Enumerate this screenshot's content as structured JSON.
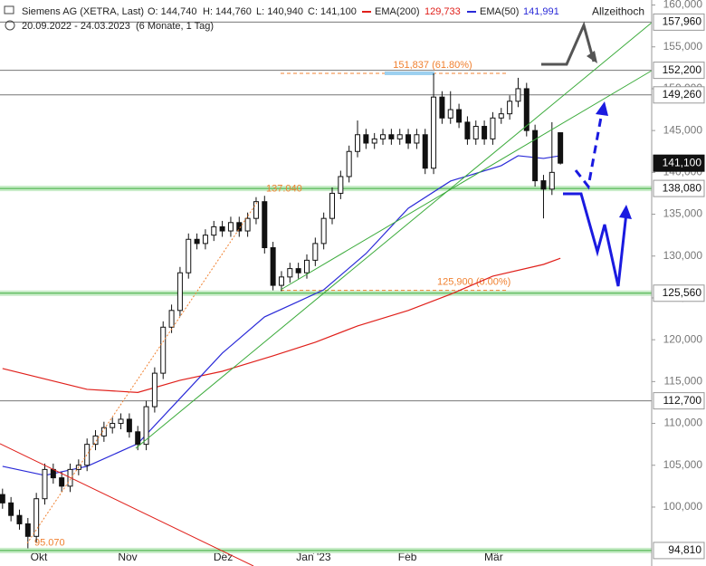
{
  "chart_data": {
    "type": "candlestick",
    "title": "Siemens AG (XETRA, Last)",
    "header": [
      "O: 144,740",
      "H: 144,760",
      "L: 140,940",
      "C: 141,100"
    ],
    "period": "20.09.2022 - 24.03.2023",
    "period_note": "(6 Monate, 1 Tag)",
    "ylim": [
      92960,
      160600
    ],
    "yticks": [
      {
        "value": 100000,
        "label": "100,000"
      },
      {
        "value": 105000,
        "label": "105,000"
      },
      {
        "value": 110000,
        "label": "110,000"
      },
      {
        "value": 115000,
        "label": "115,000"
      },
      {
        "value": 120000,
        "label": "120,000"
      },
      {
        "value": 125000,
        "label": "125,000"
      },
      {
        "value": 130000,
        "label": "130,000"
      },
      {
        "value": 135000,
        "label": "135,000"
      },
      {
        "value": 140000,
        "label": "140,000"
      },
      {
        "value": 145000,
        "label": "145,000"
      },
      {
        "value": 150000,
        "label": "150,000"
      },
      {
        "value": 155000,
        "label": "155,000"
      },
      {
        "value": 160000,
        "label": "160,000"
      }
    ],
    "xlim": [
      -0.3,
      76.8
    ],
    "xticks": [
      {
        "value": 4.3,
        "label": "Okt"
      },
      {
        "value": 14.8,
        "label": "Nov"
      },
      {
        "value": 26.1,
        "label": "Dez"
      },
      {
        "value": 36.8,
        "label": "Jan '23"
      },
      {
        "value": 47.9,
        "label": "Feb"
      },
      {
        "value": 58.1,
        "label": "Mär"
      }
    ],
    "open": [
      101500,
      100500,
      99000,
      98000,
      96500,
      101000,
      104500,
      103500,
      102500,
      104500,
      105000,
      107500,
      108500,
      109500,
      110000,
      110500,
      109000,
      107500,
      112000,
      116000,
      121500,
      123500,
      128000,
      132000,
      131500,
      132500,
      133500,
      133000,
      134000,
      133000,
      134500,
      136500,
      131000,
      126500,
      127500,
      128500,
      128000,
      129500,
      131500,
      134500,
      137500,
      139500,
      142500,
      144500,
      143500,
      144000,
      144500,
      144000,
      144500,
      143500,
      144500,
      140500,
      149000,
      146500,
      147500,
      146000,
      144000,
      145500,
      144000,
      146500,
      147000,
      148500,
      150000,
      145000,
      139000,
      138000,
      144740
    ],
    "high": [
      102200,
      101200,
      99700,
      98700,
      101700,
      105200,
      105200,
      104200,
      105200,
      105700,
      108200,
      109200,
      110200,
      110700,
      111200,
      111200,
      109700,
      112700,
      116700,
      122200,
      124200,
      128700,
      132700,
      132700,
      133200,
      134200,
      134200,
      134700,
      134700,
      135200,
      137040,
      137200,
      131700,
      128200,
      129200,
      129200,
      130200,
      132200,
      135200,
      138200,
      140200,
      143200,
      146200,
      145200,
      144700,
      145200,
      145200,
      145200,
      145200,
      145200,
      145200,
      151837,
      149700,
      149700,
      148200,
      146700,
      146200,
      146200,
      147200,
      147700,
      149200,
      151300,
      150700,
      145700,
      139700,
      146000,
      144760
    ],
    "low": [
      99800,
      98300,
      97300,
      95070,
      95800,
      100300,
      102800,
      101800,
      101800,
      103800,
      104300,
      106800,
      107800,
      108800,
      109300,
      108300,
      106800,
      106800,
      111300,
      115300,
      120800,
      122800,
      127300,
      130800,
      130800,
      131800,
      132300,
      132300,
      132300,
      132300,
      133800,
      130300,
      125900,
      125800,
      126800,
      127300,
      127300,
      128800,
      130800,
      133800,
      136800,
      138800,
      141800,
      142800,
      142800,
      143300,
      143300,
      143300,
      142800,
      142800,
      139800,
      139800,
      145800,
      145800,
      145300,
      143300,
      143300,
      143300,
      143300,
      145800,
      146300,
      147800,
      144300,
      138300,
      134500,
      137300,
      140940
    ],
    "close": [
      100500,
      99000,
      98000,
      96500,
      101000,
      104500,
      103500,
      102500,
      104500,
      105000,
      107500,
      108500,
      109500,
      110000,
      110500,
      109000,
      107500,
      112000,
      116000,
      121500,
      123500,
      128000,
      132000,
      131500,
      132500,
      133500,
      133000,
      134000,
      133000,
      134500,
      136500,
      131000,
      126500,
      127500,
      128500,
      128000,
      129500,
      131500,
      134500,
      137500,
      139500,
      142500,
      144500,
      143500,
      144000,
      144500,
      144000,
      144500,
      143500,
      144500,
      140500,
      149000,
      146500,
      147500,
      146000,
      144000,
      145500,
      144000,
      146500,
      147000,
      148500,
      150000,
      145000,
      139000,
      138000,
      140000,
      141100
    ],
    "series": [
      {
        "name": "EMA(200)",
        "value_label": "129,733",
        "color": "#e0201b",
        "x": [
          0,
          10,
          16,
          21,
          26,
          32,
          37,
          42,
          48,
          53,
          58,
          64,
          66
        ],
        "values": [
          116560,
          114070,
          113700,
          115150,
          116230,
          118070,
          119700,
          121650,
          123500,
          125430,
          127600,
          129000,
          129733
        ]
      },
      {
        "name": "EMA(50)",
        "value_label": "141,991",
        "color": "#2a2ad8",
        "x": [
          0,
          5,
          10,
          16,
          21,
          26,
          31,
          35,
          38,
          43,
          48,
          53,
          59,
          61,
          64,
          66
        ],
        "values": [
          104870,
          103790,
          104870,
          107580,
          112990,
          118400,
          122730,
          124570,
          125970,
          130300,
          135710,
          138960,
          140800,
          141990,
          141670,
          141991
        ]
      }
    ],
    "levels": [
      {
        "value": 157960,
        "label": "157,960",
        "style": "gray"
      },
      {
        "value": 152200,
        "label": "152,200",
        "style": "gray"
      },
      {
        "value": 149260,
        "label": "149,260",
        "style": "gray"
      },
      {
        "value": 141100,
        "label": "141,100",
        "style": "last"
      },
      {
        "value": 138080,
        "label": "138,080",
        "style": "green"
      },
      {
        "value": 125560,
        "label": "125,560",
        "style": "green"
      },
      {
        "value": 112700,
        "label": "112,700",
        "style": "gray"
      },
      {
        "value": 94810,
        "label": "94,810",
        "style": "green"
      }
    ],
    "annotations": [
      {
        "value": 151837,
        "label": "151,837 (61.80%)"
      },
      {
        "value": 137040,
        "label": "137.040"
      },
      {
        "value": 125900,
        "label": "125,900 (0.00%)"
      },
      {
        "value": 95070,
        "label": "95.070"
      },
      {
        "value": 157960,
        "label": "Allzeithoch"
      }
    ]
  }
}
